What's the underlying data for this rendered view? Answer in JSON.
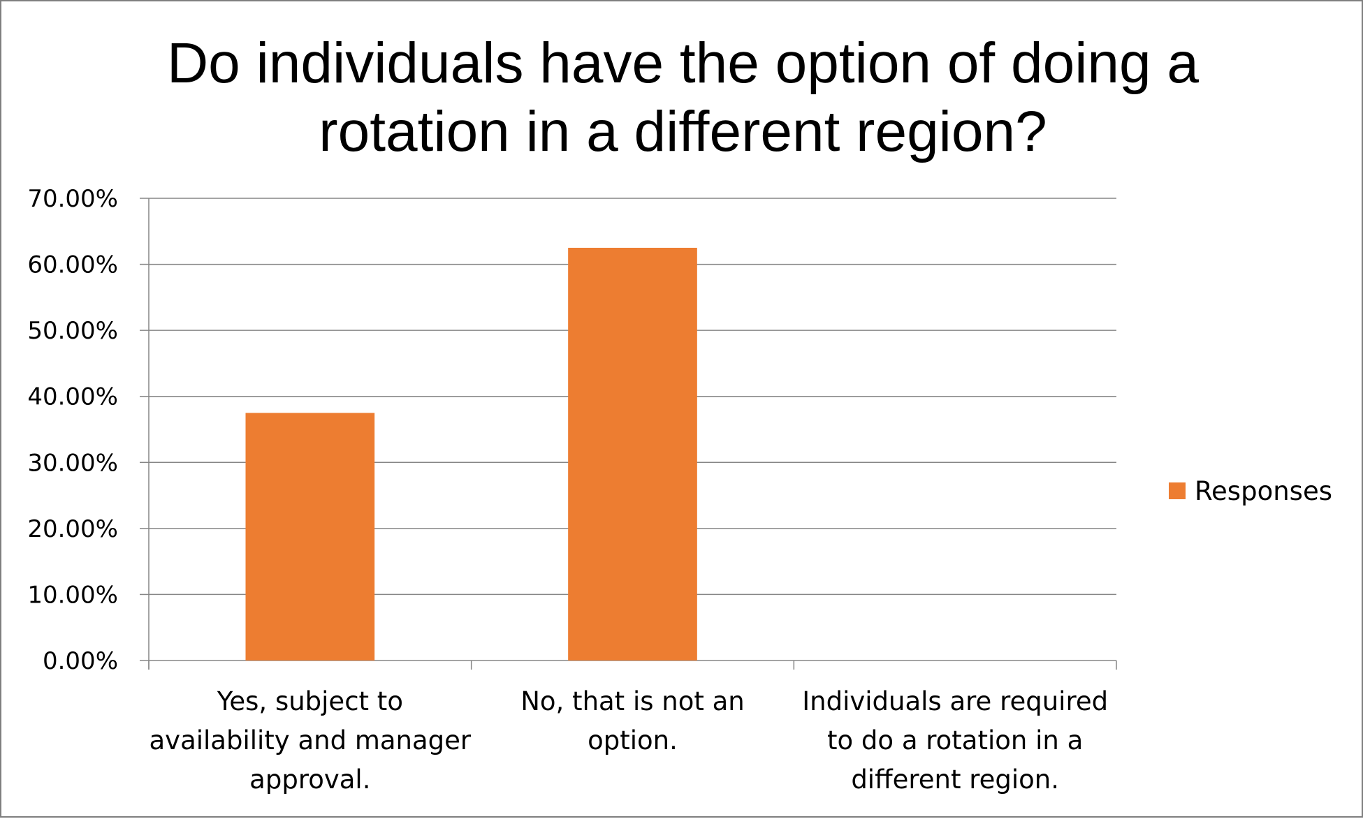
{
  "chart_data": {
    "type": "bar",
    "title": "Do individuals have the option of doing a rotation in a different region?",
    "title_lines": [
      "Do individuals have the option of doing a",
      "rotation in a different region?"
    ],
    "categories": [
      "Yes, subject to availability and manager approval.",
      "No, that is not an option.",
      "Individuals are required to do a rotation in a different region."
    ],
    "category_label_lines": [
      [
        "Yes, subject to",
        "availability and manager",
        "approval."
      ],
      [
        "No, that is not an",
        "option."
      ],
      [
        "Individuals are required",
        "to do a rotation in a",
        "different region."
      ]
    ],
    "series": [
      {
        "name": "Responses",
        "values": [
          37.5,
          62.5,
          0
        ],
        "color": "#ed7d31"
      }
    ],
    "y_ticks": [
      "0.00%",
      "10.00%",
      "20.00%",
      "30.00%",
      "40.00%",
      "50.00%",
      "60.00%",
      "70.00%"
    ],
    "ylim": [
      0,
      70
    ],
    "y_unit": "percent",
    "xlabel": "",
    "ylabel": "",
    "grid": true,
    "gridline_color": "#868686",
    "legend": {
      "position": "right",
      "entries": [
        "Responses"
      ]
    }
  }
}
